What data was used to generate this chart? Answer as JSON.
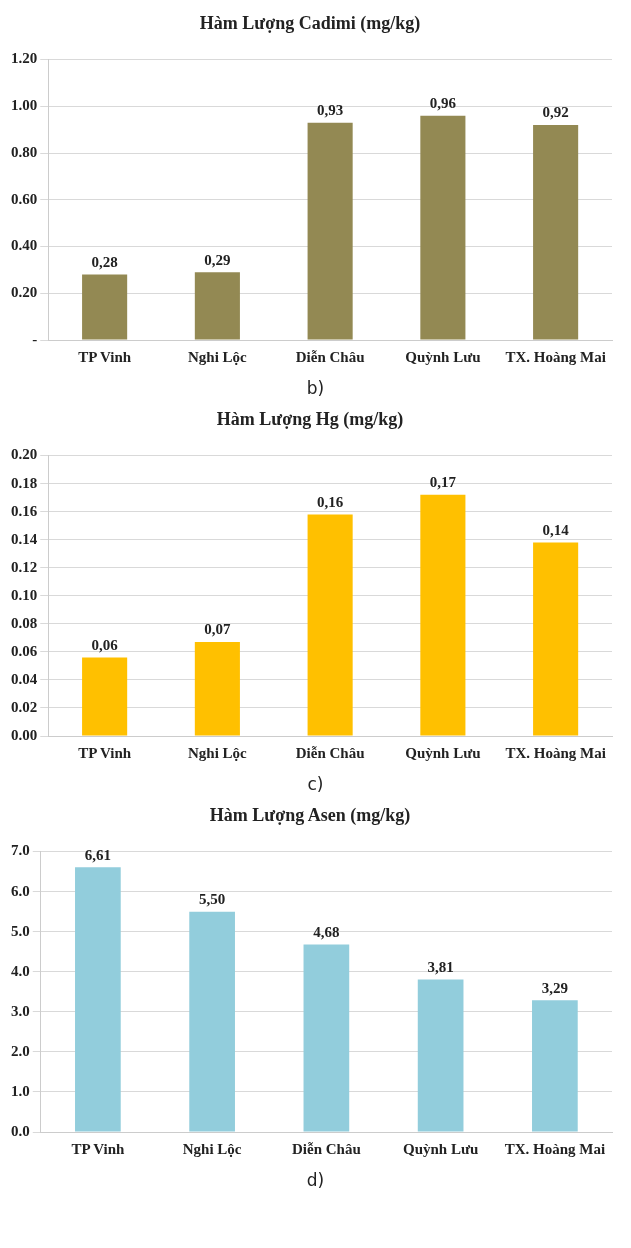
{
  "chart_data": [
    {
      "type": "bar",
      "title": "Hàm Lượng Cadimi (mg/kg)",
      "categories": [
        "TP Vinh",
        "Nghi Lộc",
        "Diễn Châu",
        "Quỳnh Lưu",
        "TX. Hoàng Mai"
      ],
      "values": [
        0.28,
        0.29,
        0.93,
        0.96,
        0.92
      ],
      "value_labels": [
        "0,28",
        "0,29",
        "0,93",
        "0,96",
        "0,92"
      ],
      "color": "#938953",
      "ylim": [
        0,
        1.2
      ],
      "yticks": [
        {
          "value": 0,
          "label": "-"
        },
        {
          "value": 0.2,
          "label": "0.20"
        },
        {
          "value": 0.4,
          "label": "0.40"
        },
        {
          "value": 0.6,
          "label": "0.60"
        },
        {
          "value": 0.8,
          "label": "0.80"
        },
        {
          "value": 1,
          "label": "1.00"
        },
        {
          "value": 1.2,
          "label": "1.20"
        }
      ],
      "grid": "y",
      "annotations": [
        "b)"
      ]
    },
    {
      "type": "bar",
      "title": "Hàm Lượng Hg (mg/kg)",
      "categories": [
        "TP Vinh",
        "Nghi Lộc",
        "Diễn Châu",
        "Quỳnh Lưu",
        "TX. Hoàng Mai"
      ],
      "values": [
        0.056,
        0.067,
        0.158,
        0.172,
        0.138
      ],
      "value_labels": [
        "0,06",
        "0,07",
        "0,16",
        "0,17",
        "0,14"
      ],
      "color": "#ffc000",
      "ylim": [
        0,
        0.2
      ],
      "yticks": [
        {
          "value": 0,
          "label": "0.00"
        },
        {
          "value": 0.02,
          "label": "0.02"
        },
        {
          "value": 0.04,
          "label": "0.04"
        },
        {
          "value": 0.06,
          "label": "0.06"
        },
        {
          "value": 0.08,
          "label": "0.08"
        },
        {
          "value": 0.1,
          "label": "0.10"
        },
        {
          "value": 0.12,
          "label": "0.12"
        },
        {
          "value": 0.14,
          "label": "0.14"
        },
        {
          "value": 0.16,
          "label": "0.16"
        },
        {
          "value": 0.18,
          "label": "0.18"
        },
        {
          "value": 0.2,
          "label": "0.20"
        }
      ],
      "grid": "y",
      "annotations": [
        "c)"
      ]
    },
    {
      "type": "bar",
      "title": "Hàm Lượng Asen (mg/kg)",
      "categories": [
        "TP Vinh",
        "Nghi Lộc",
        "Diễn Châu",
        "Quỳnh Lưu",
        "TX. Hoàng Mai"
      ],
      "values": [
        6.61,
        5.5,
        4.68,
        3.81,
        3.29
      ],
      "value_labels": [
        "6,61",
        "5,50",
        "4,68",
        "3,81",
        "3,29"
      ],
      "color": "#92cddc",
      "ylim": [
        0,
        7
      ],
      "yticks": [
        {
          "value": 0,
          "label": "0.0"
        },
        {
          "value": 1,
          "label": "1.0"
        },
        {
          "value": 2,
          "label": "2.0"
        },
        {
          "value": 3,
          "label": "3.0"
        },
        {
          "value": 4,
          "label": "4.0"
        },
        {
          "value": 5,
          "label": "5.0"
        },
        {
          "value": 6,
          "label": "6.0"
        },
        {
          "value": 7,
          "label": "7.0"
        }
      ],
      "grid": "y",
      "annotations": [
        "d)"
      ]
    }
  ]
}
